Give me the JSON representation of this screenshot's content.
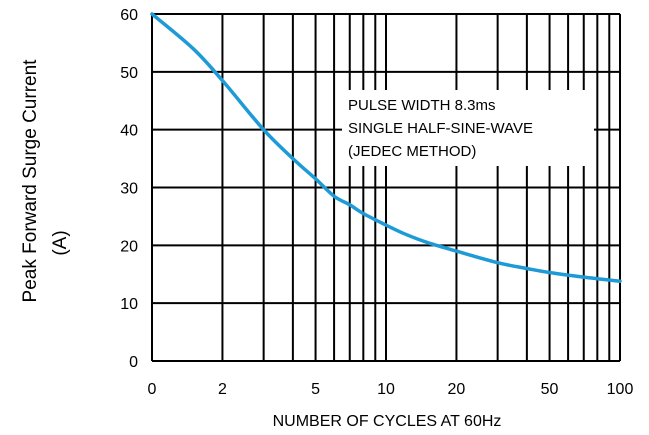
{
  "chart_data": {
    "type": "line",
    "x_scale": "log",
    "xlabel": "NUMBER OF CYCLES AT 60Hz",
    "ylabel": [
      "Peak Forward Surge Current",
      "(A)"
    ],
    "xlim": [
      1,
      100
    ],
    "ylim": [
      0,
      60
    ],
    "y_ticks": [
      0,
      10,
      20,
      30,
      40,
      50,
      60
    ],
    "x_tick_labels": [
      {
        "label": "0",
        "at": 1
      },
      {
        "label": "2",
        "at": 2
      },
      {
        "label": "5",
        "at": 5
      },
      {
        "label": "10",
        "at": 10
      },
      {
        "label": "20",
        "at": 20
      },
      {
        "label": "50",
        "at": 50
      },
      {
        "label": "100",
        "at": 100
      }
    ],
    "x_grid": [
      1,
      2,
      3,
      4,
      5,
      6,
      7,
      8,
      9,
      10,
      20,
      30,
      40,
      50,
      60,
      70,
      80,
      90,
      100
    ],
    "grid": true,
    "annotation": [
      "PULSE WIDTH 8.3ms",
      "SINGLE HALF-SINE-WAVE",
      "(JEDEC METHOD)"
    ],
    "series": [
      {
        "color": "#1e9bd7",
        "x": [
          1,
          1.5,
          2,
          3,
          4,
          5,
          6,
          7,
          8,
          10,
          12,
          15,
          20,
          30,
          40,
          50,
          70,
          100
        ],
        "y": [
          60,
          54,
          48.5,
          40,
          35,
          31.5,
          28.5,
          27,
          25.5,
          23.5,
          22,
          20.5,
          19,
          17,
          16,
          15.3,
          14.5,
          13.8
        ]
      }
    ]
  }
}
